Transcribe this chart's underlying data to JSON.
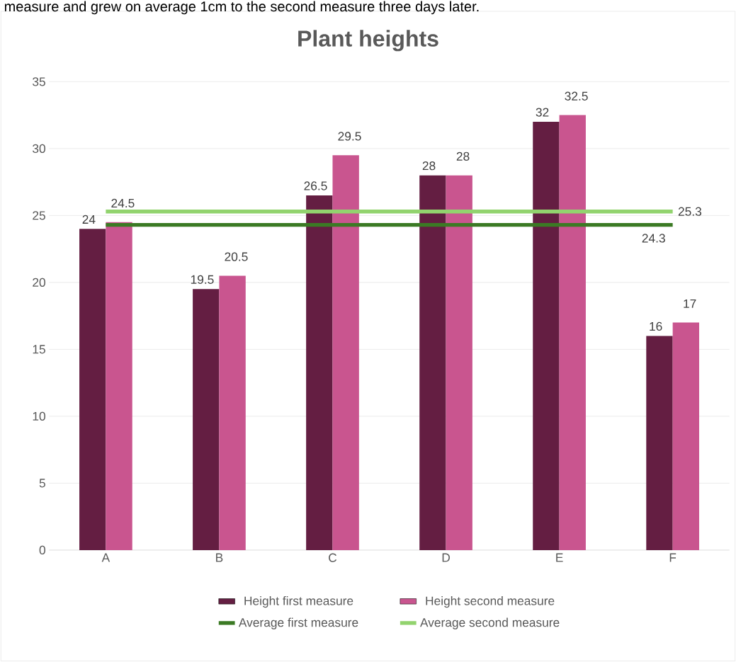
{
  "chart_data": {
    "type": "bar",
    "title": "Plant heights",
    "annotations": [
      "measure and grew on average 1cm to the second measure three days later."
    ],
    "categories": [
      "A",
      "B",
      "C",
      "D",
      "E",
      "F"
    ],
    "series": [
      {
        "name": "Height first measure",
        "color": "#641e42",
        "values": [
          24,
          19.5,
          26.5,
          28,
          32,
          16
        ],
        "value_labels": [
          "24",
          "19.5",
          "26.5",
          "28",
          "32",
          "16"
        ]
      },
      {
        "name": "Height second measure",
        "color": "#c9558f",
        "values": [
          24.5,
          20.5,
          29.5,
          28,
          32.5,
          17
        ],
        "value_labels": [
          "24.5",
          "20.5",
          "29.5",
          "28",
          "32.5",
          "17"
        ]
      },
      {
        "name": "Average first measure",
        "type": "line",
        "color": "#3b7a24",
        "values": [
          24.3,
          24.3,
          24.3,
          24.3,
          24.3,
          24.3
        ],
        "value_labels": [
          null,
          null,
          null,
          null,
          null,
          "24.3"
        ]
      },
      {
        "name": "Average second measure",
        "type": "line",
        "color": "#92d36e",
        "values": [
          25.3,
          25.3,
          25.3,
          25.3,
          25.3,
          25.3
        ],
        "value_labels": [
          null,
          null,
          null,
          null,
          null,
          "25.3"
        ]
      }
    ],
    "ylim": [
      0,
      35
    ],
    "yticks": [
      0,
      5,
      10,
      15,
      20,
      25,
      30,
      35
    ],
    "grid": "y",
    "legend": "bottom",
    "marker": "none",
    "line_style": "solid"
  }
}
